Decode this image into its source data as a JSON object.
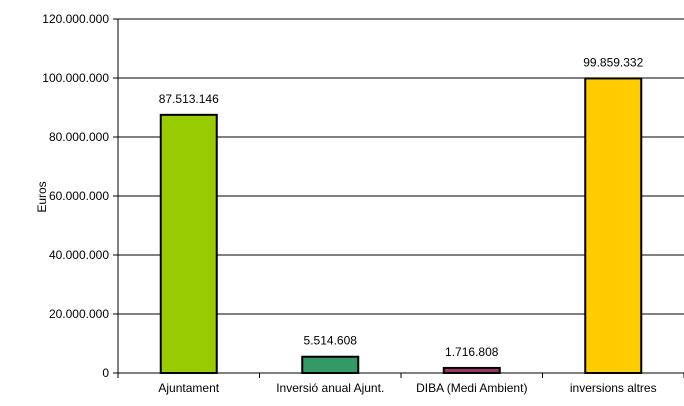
{
  "chart_data": {
    "type": "bar",
    "title": "",
    "xlabel": "",
    "ylabel": "Euros",
    "ylim": [
      0,
      120000000
    ],
    "yticks": [
      0,
      20000000,
      40000000,
      60000000,
      80000000,
      100000000,
      120000000
    ],
    "ytick_labels": [
      "0",
      "20.000.000",
      "40.000.000",
      "60.000.000",
      "80.000.000",
      "100.000.000",
      "120.000.000"
    ],
    "grid": true,
    "legend": "none",
    "categories": [
      "Ajuntament",
      "Inversió anual Ajunt.",
      "DIBA (Medi Ambient)",
      "inversions altres"
    ],
    "values": [
      87513146,
      5514608,
      1716808,
      99859332
    ],
    "value_labels": [
      "87.513.146",
      "5.514.608",
      "1.716.808",
      "99.859.332"
    ],
    "colors": [
      "#99CC00",
      "#339966",
      "#993366",
      "#FFCC00"
    ]
  }
}
